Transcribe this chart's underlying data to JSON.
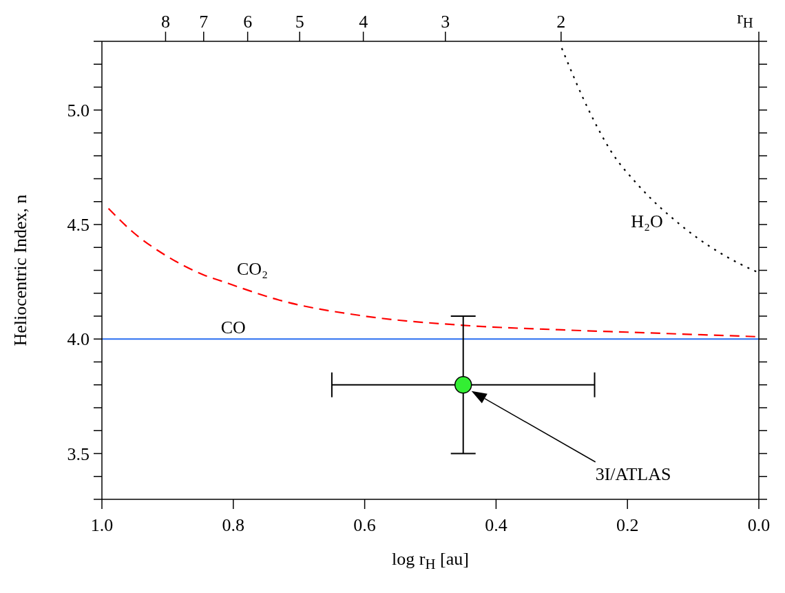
{
  "chart_data": {
    "type": "line",
    "xlabel": "log r$_{H}$ [au]",
    "ylabel": "Heliocentric Index, n",
    "x2label": "r$_{H}$",
    "xlim": [
      1.0,
      0.0
    ],
    "xticks": [
      {
        "value": 1.0,
        "label": "1.0"
      },
      {
        "value": 0.8,
        "label": "0.8"
      },
      {
        "value": 0.6,
        "label": "0.6"
      },
      {
        "value": 0.4,
        "label": "0.4"
      },
      {
        "value": 0.2,
        "label": "0.2"
      },
      {
        "value": 0.0,
        "label": "0.0"
      }
    ],
    "x2lim": [
      10,
      1
    ],
    "log": "x2",
    "x2ticks": [
      8,
      7,
      6,
      5,
      4,
      3,
      2,
      {
        "value": 1,
        "label": null
      }
    ],
    "ylim": [
      3.3,
      5.3
    ],
    "yticks": [
      {
        "value": 3.3,
        "label": null
      },
      {
        "value": 3.4,
        "label": null
      },
      {
        "value": 3.5,
        "label": "3.5"
      },
      {
        "value": 3.6,
        "label": null
      },
      {
        "value": 3.7,
        "label": null
      },
      {
        "value": 3.8,
        "label": null
      },
      {
        "value": 3.9,
        "label": null
      },
      {
        "value": 4.0,
        "label": "4.0"
      },
      {
        "value": 4.1,
        "label": null
      },
      {
        "value": 4.2,
        "label": null
      },
      {
        "value": 4.3,
        "label": null
      },
      {
        "value": 4.4,
        "label": null
      },
      {
        "value": 4.5,
        "label": "4.5"
      },
      {
        "value": 4.6,
        "label": null
      },
      {
        "value": 4.7,
        "label": null
      },
      {
        "value": 4.8,
        "label": null
      },
      {
        "value": 4.9,
        "label": null
      },
      {
        "value": 5.0,
        "label": "5.0"
      },
      {
        "value": 5.1,
        "label": null
      },
      {
        "value": 5.2,
        "label": null
      },
      {
        "value": 5.3,
        "label": null
      }
    ],
    "grid": false,
    "legend": false,
    "series": [
      {
        "name": "CO",
        "color": "#2a6ef0",
        "line_style": "solid",
        "marker": "none",
        "x": [
          1.0,
          0.93,
          0.8,
          0.6,
          0.4,
          0.2,
          0.0
        ],
        "values": [
          4.0,
          4.0,
          4.0,
          4.0,
          4.0,
          4.0,
          4.0
        ]
      },
      {
        "name": "CO₂",
        "color": "#ff0000",
        "line_style": "dashed",
        "marker": "none",
        "x": [
          0.99,
          0.954,
          0.9,
          0.845,
          0.815,
          0.73,
          0.6,
          0.45,
          0.3,
          0.2,
          0.1,
          0.0
        ],
        "values": [
          4.57,
          4.47,
          4.36,
          4.28,
          4.25,
          4.17,
          4.1,
          4.06,
          4.04,
          4.03,
          4.02,
          4.01
        ]
      },
      {
        "name": "H₂O",
        "color": "#000000",
        "line_style": "dotted",
        "marker": "none",
        "x": [
          0.3,
          0.259,
          0.225,
          0.183,
          0.12,
          0.03,
          0.0
        ],
        "values": [
          5.27,
          5.0,
          4.82,
          4.67,
          4.5,
          4.33,
          4.29
        ]
      },
      {
        "type": "scatter",
        "color": "#33ee33",
        "marker": "circle",
        "x": [
          0.45
        ],
        "values": [
          3.8
        ],
        "errors": [
          0.3
        ],
        "xerrors": [
          0.2
        ]
      }
    ],
    "annotations": [
      "3I/ATLAS"
    ]
  }
}
